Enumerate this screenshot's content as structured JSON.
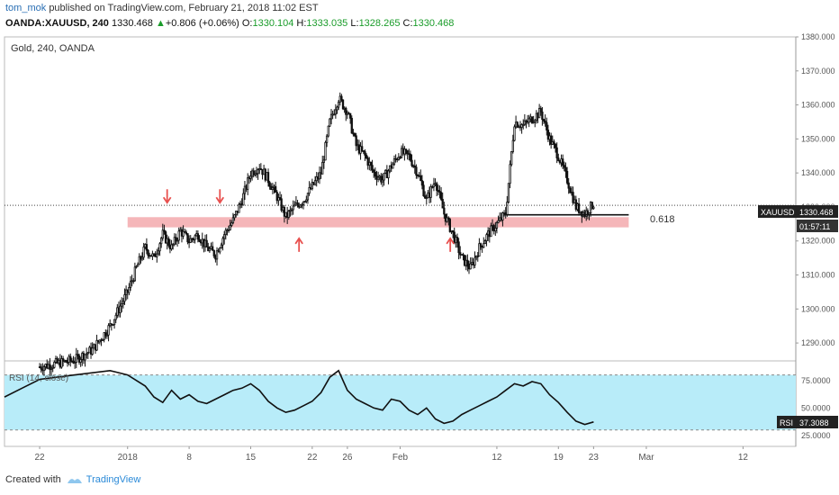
{
  "header": {
    "author": "tom_mok",
    "published_text": "published on TradingView.com, February 21, 2018 11:02 EST",
    "symbol": "OANDA:XAUUSD, 240",
    "last": "1330.468",
    "change_arrow": "▲",
    "change": "+0.806 (+0.06%)",
    "o_label": "O:",
    "o_value": "1330.104",
    "h_label": "H:",
    "h_value": "1333.035",
    "l_label": "L:",
    "l_value": "1328.265",
    "c_label": "C:",
    "c_value": "1330.468"
  },
  "footer": {
    "created_with": "Created with",
    "brand": "TradingView"
  },
  "colors": {
    "candle": "#111111",
    "zone": "#f2a4a8",
    "arrow": "#e8514f",
    "rsi_fill": "#b8ecf9",
    "rsi_line": "#111111",
    "axis_text": "#555555"
  },
  "chart_data": [
    {
      "type": "candlestick",
      "title": "Gold, 240, OANDA",
      "ylim": [
        1285,
        1380
      ],
      "y_ticks": [
        1290,
        1300,
        1310,
        1320,
        1330,
        1340,
        1350,
        1360,
        1370,
        1380
      ],
      "y_tick_labels": [
        "1290.000",
        "1300.000",
        "1310.000",
        "1320.000",
        "1330.000",
        "1340.000",
        "1350.000",
        "1360.000",
        "1370.000",
        "1380.000"
      ],
      "x_ticks": [
        {
          "label": "22",
          "day": -10
        },
        {
          "label": "2018",
          "day": 0
        },
        {
          "label": "8",
          "day": 7
        },
        {
          "label": "15",
          "day": 14
        },
        {
          "label": "22",
          "day": 21
        },
        {
          "label": "26",
          "day": 25
        },
        {
          "label": "Feb",
          "day": 31
        },
        {
          "label": "12",
          "day": 42
        },
        {
          "label": "19",
          "day": 49
        },
        {
          "label": "23",
          "day": 53
        },
        {
          "label": "Mar",
          "day": 59
        },
        {
          "label": "12",
          "day": 70
        }
      ],
      "x_days_range": [
        -14,
        76
      ],
      "price_path": [
        [
          -10,
          1283
        ],
        [
          -6,
          1285
        ],
        [
          -4,
          1288
        ],
        [
          -2,
          1295
        ],
        [
          -1,
          1300
        ],
        [
          0,
          1305
        ],
        [
          1,
          1312
        ],
        [
          2,
          1318
        ],
        [
          3,
          1315
        ],
        [
          4,
          1322
        ],
        [
          5,
          1318
        ],
        [
          6,
          1323
        ],
        [
          7,
          1320
        ],
        [
          8,
          1322
        ],
        [
          9,
          1318
        ],
        [
          10,
          1316
        ],
        [
          11,
          1322
        ],
        [
          12,
          1326
        ],
        [
          13,
          1332
        ],
        [
          14,
          1340
        ],
        [
          15,
          1342
        ],
        [
          16,
          1338
        ],
        [
          17,
          1333
        ],
        [
          18,
          1327
        ],
        [
          19,
          1330
        ],
        [
          20,
          1332
        ],
        [
          21,
          1336
        ],
        [
          22,
          1340
        ],
        [
          23,
          1355
        ],
        [
          24,
          1362
        ],
        [
          25,
          1358
        ],
        [
          26,
          1348
        ],
        [
          27,
          1345
        ],
        [
          28,
          1340
        ],
        [
          29,
          1338
        ],
        [
          30,
          1342
        ],
        [
          31,
          1346
        ],
        [
          32,
          1345
        ],
        [
          33,
          1340
        ],
        [
          34,
          1332
        ],
        [
          35,
          1338
        ],
        [
          36,
          1328
        ],
        [
          37,
          1322
        ],
        [
          38,
          1315
        ],
        [
          39,
          1312
        ],
        [
          40,
          1318
        ],
        [
          41,
          1322
        ],
        [
          42,
          1325
        ],
        [
          43,
          1328
        ],
        [
          44,
          1355
        ],
        [
          45,
          1354
        ],
        [
          46,
          1356
        ],
        [
          47,
          1358
        ],
        [
          48,
          1350
        ],
        [
          49,
          1345
        ],
        [
          50,
          1338
        ],
        [
          51,
          1330
        ],
        [
          52,
          1328
        ],
        [
          53,
          1331
        ]
      ],
      "support_zone": {
        "low": 1324,
        "high": 1327,
        "from_day": 0,
        "to_day": 57
      },
      "fib_line": {
        "label": "0.618",
        "price": 1327.7,
        "from_day": 43,
        "to_day": 57
      },
      "dotted_price_line": 1330.468,
      "price_label": {
        "symbol": "XAUUSD",
        "value": "1330.468",
        "countdown": "01:57:11"
      },
      "arrows": [
        {
          "direction": "down",
          "day": 4.5,
          "price": 1331.5
        },
        {
          "direction": "down",
          "day": 10.5,
          "price": 1331.5
        },
        {
          "direction": "up",
          "day": 19.5,
          "price": 1320.5
        },
        {
          "direction": "up",
          "day": 36.7,
          "price": 1320.5
        }
      ]
    },
    {
      "type": "line",
      "title": "RSI (14, close)",
      "ylim": [
        15,
        92
      ],
      "band": [
        30,
        80
      ],
      "y_ticks": [
        25,
        50,
        75
      ],
      "y_tick_labels": [
        "25.0000",
        "50.0000",
        "75.0000"
      ],
      "last_label": "RSI",
      "last_value": "37.3088",
      "series": [
        [
          -14,
          60
        ],
        [
          -12,
          68
        ],
        [
          -10,
          76
        ],
        [
          -8,
          78
        ],
        [
          -6,
          80
        ],
        [
          -4,
          82
        ],
        [
          -2,
          84
        ],
        [
          0,
          80
        ],
        [
          2,
          70
        ],
        [
          3,
          60
        ],
        [
          4,
          55
        ],
        [
          5,
          66
        ],
        [
          6,
          58
        ],
        [
          7,
          62
        ],
        [
          8,
          56
        ],
        [
          9,
          54
        ],
        [
          10,
          58
        ],
        [
          11,
          62
        ],
        [
          12,
          66
        ],
        [
          13,
          68
        ],
        [
          14,
          72
        ],
        [
          15,
          66
        ],
        [
          16,
          56
        ],
        [
          17,
          50
        ],
        [
          18,
          46
        ],
        [
          19,
          48
        ],
        [
          20,
          52
        ],
        [
          21,
          56
        ],
        [
          22,
          64
        ],
        [
          23,
          78
        ],
        [
          24,
          84
        ],
        [
          25,
          66
        ],
        [
          26,
          58
        ],
        [
          27,
          54
        ],
        [
          28,
          50
        ],
        [
          29,
          48
        ],
        [
          30,
          58
        ],
        [
          31,
          56
        ],
        [
          32,
          48
        ],
        [
          33,
          44
        ],
        [
          34,
          50
        ],
        [
          35,
          40
        ],
        [
          36,
          36
        ],
        [
          37,
          38
        ],
        [
          38,
          44
        ],
        [
          39,
          48
        ],
        [
          40,
          52
        ],
        [
          41,
          56
        ],
        [
          42,
          60
        ],
        [
          43,
          66
        ],
        [
          44,
          72
        ],
        [
          45,
          70
        ],
        [
          46,
          74
        ],
        [
          47,
          72
        ],
        [
          48,
          62
        ],
        [
          49,
          55
        ],
        [
          50,
          46
        ],
        [
          51,
          38
        ],
        [
          52,
          35
        ],
        [
          53,
          37.3
        ]
      ]
    }
  ]
}
